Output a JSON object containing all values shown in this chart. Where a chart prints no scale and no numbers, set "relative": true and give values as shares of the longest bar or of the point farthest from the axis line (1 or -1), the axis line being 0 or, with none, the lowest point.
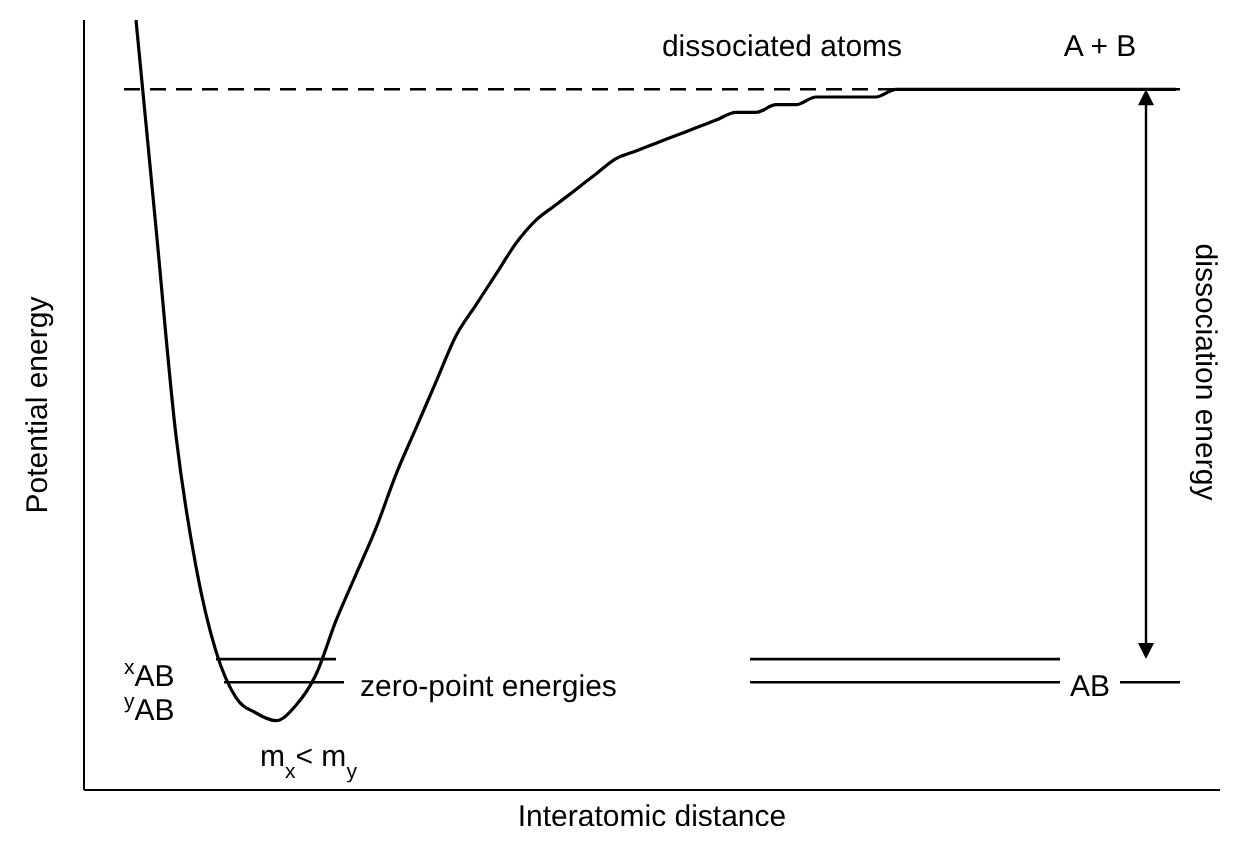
{
  "chart_data": {
    "type": "line",
    "relative": true,
    "xlabel": "Interatomic distance",
    "ylabel": "Potential energy",
    "categories": [
      null,
      null,
      null,
      null,
      null,
      null,
      null,
      null,
      null,
      null,
      null,
      null,
      null,
      null,
      null,
      null,
      null,
      null,
      null,
      null,
      null,
      null,
      null,
      null,
      null,
      null,
      null,
      null,
      null,
      null,
      null,
      null,
      null,
      null,
      null,
      null,
      null,
      null,
      null,
      null,
      null,
      null,
      null,
      null,
      null,
      null,
      null,
      null,
      null,
      null,
      null,
      null,
      null
    ],
    "series": [
      {
        "color": "#000000",
        "values": [
          1.0,
          0.73,
          0.46,
          0.29,
          0.18,
          0.12,
          0.1,
          0.09,
          0.11,
          0.15,
          0.22,
          0.28,
          0.34,
          0.41,
          0.47,
          0.53,
          0.59,
          0.63,
          0.67,
          0.71,
          0.74,
          0.76,
          0.78,
          0.8,
          0.82,
          0.83,
          0.84,
          0.85,
          0.86,
          0.87,
          0.88,
          0.88,
          0.89,
          0.89,
          0.9,
          0.9,
          0.9,
          0.9,
          0.91,
          0.91,
          0.91,
          0.91,
          0.91,
          0.91,
          0.91,
          0.91,
          0.91,
          0.91,
          0.91,
          0.91,
          0.91,
          0.91,
          0.91
        ]
      }
    ],
    "marker": "none",
    "line_style": "solid",
    "ref_lines": [
      {
        "axis": "y",
        "value": 0.91,
        "line_style": "dashed",
        "color": "#000000"
      },
      {
        "axis": "y",
        "value": 0.17,
        "line_style": "solid",
        "color": "#000000"
      },
      {
        "axis": "y",
        "value": 0.14,
        "line_style": "solid",
        "color": "#000000"
      }
    ],
    "annotations": [
      "dissociated atoms",
      "A + B",
      "dissociation energy",
      "$^{x}$AB",
      "$^{y}$AB",
      "zero-point energies",
      "AB",
      "m$_{x}$< m$_{y}$"
    ]
  }
}
